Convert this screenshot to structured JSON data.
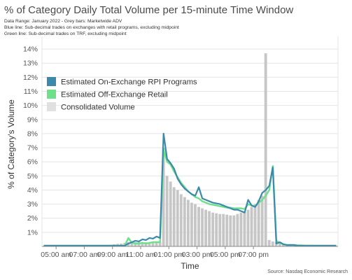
{
  "chart_data": {
    "type": "bar+line",
    "title": "% of Category Daily Total Volume per 15-minute Time Window",
    "subtitle_lines": [
      "Data Range: January 2022 - Grey bars: Marketwide ADV",
      "Blue line: Sub-decimal trades on exchanges with retail programs, excluding midpoint",
      "Green line: Sub-decimal trades on TRF, excluding midpoint"
    ],
    "xlabel": "Time",
    "ylabel": "% of Category's Volume",
    "source": "Source: Nasdaq Economic Research",
    "ylim": [
      0,
      14.5
    ],
    "y_ticks": [
      1,
      2,
      3,
      4,
      5,
      6,
      7,
      8,
      9,
      10,
      11,
      12,
      13,
      14
    ],
    "y_tick_labels": [
      "1%",
      "2%",
      "3%",
      "4%",
      "5%",
      "6%",
      "7%",
      "8%",
      "9%",
      "10%",
      "11%",
      "12%",
      "13%",
      "14%"
    ],
    "x_tick_labels": [
      {
        "hour": 5,
        "label": "05:00 am"
      },
      {
        "hour": 7,
        "label": "07:00 am"
      },
      {
        "hour": 9,
        "label": "09:00 am"
      },
      {
        "hour": 11,
        "label": "11:00 am"
      },
      {
        "hour": 13,
        "label": "01:00 pm"
      },
      {
        "hour": 15,
        "label": "03:00 pm"
      },
      {
        "hour": 17,
        "label": "05:00 pm"
      },
      {
        "hour": 19,
        "label": "07:00 pm"
      }
    ],
    "x_start_hour": 4,
    "interval_minutes": 15,
    "legend_position": "upper-left",
    "series": [
      {
        "name": "Consolidated Volume",
        "kind": "bar",
        "color": "#c6c6c6",
        "values": [
          0.02,
          0.02,
          0.02,
          0.02,
          0.02,
          0.02,
          0.02,
          0.02,
          0.02,
          0.03,
          0.03,
          0.03,
          0.03,
          0.04,
          0.04,
          0.05,
          0.06,
          0.07,
          0.09,
          0.12,
          0.15,
          0.18,
          0.2,
          0.25,
          0.3,
          0.3,
          0.3,
          0.3,
          0.3,
          0.3,
          0.3,
          0.3,
          0.3,
          0.3,
          7.0,
          5.0,
          4.6,
          4.2,
          4.0,
          3.7,
          3.5,
          3.3,
          3.1,
          3.0,
          2.8,
          2.7,
          2.6,
          2.5,
          2.4,
          2.35,
          2.3,
          2.3,
          2.25,
          2.2,
          2.2,
          2.3,
          2.4,
          2.5,
          2.6,
          2.8,
          3.0,
          3.3,
          3.6,
          13.7,
          0.45,
          0.35,
          0.3,
          0.25,
          0.2,
          0.15,
          0.12,
          0.1,
          0.09,
          0.08,
          0.07,
          0.06,
          0.05,
          0.05,
          0.04,
          0.04,
          0.03,
          0.03,
          0.03,
          0.03
        ]
      },
      {
        "name": "Estimated On-Exchange RPI Programs",
        "kind": "line",
        "color": "#3b8aac",
        "values": [
          0.05,
          0.05,
          0.05,
          0.05,
          0.05,
          0.05,
          0.05,
          0.05,
          0.05,
          0.05,
          0.05,
          0.05,
          0.05,
          0.05,
          0.05,
          0.05,
          0.05,
          0.05,
          0.05,
          0.05,
          0.05,
          0.05,
          0.05,
          0.05,
          0.2,
          0.3,
          0.4,
          0.35,
          0.5,
          0.45,
          0.6,
          0.55,
          0.7,
          0.6,
          8.0,
          6.2,
          5.9,
          5.5,
          4.8,
          4.4,
          4.1,
          3.9,
          3.7,
          3.6,
          4.2,
          3.4,
          3.3,
          3.2,
          3.1,
          3.05,
          3.0,
          2.9,
          2.8,
          2.7,
          2.6,
          2.6,
          2.5,
          2.4,
          3.3,
          2.9,
          2.8,
          3.2,
          3.8,
          4.0,
          4.3,
          5.6,
          0.2,
          0.3,
          0.15,
          0.1,
          0.1,
          0.1,
          0.05,
          0.05,
          0.05,
          0.05,
          0.05,
          0.05,
          0.05,
          0.05,
          0.05,
          0.05,
          0.05,
          0.05
        ]
      },
      {
        "name": "Estimated Off-Exchange Retail",
        "kind": "line",
        "color": "#6ee08a",
        "values": [
          0.05,
          0.05,
          0.05,
          0.05,
          0.05,
          0.05,
          0.05,
          0.05,
          0.05,
          0.05,
          0.05,
          0.05,
          0.05,
          0.05,
          0.05,
          0.05,
          0.05,
          0.05,
          0.05,
          0.05,
          0.05,
          0.05,
          0.05,
          0.05,
          0.6,
          0.25,
          0.2,
          0.2,
          0.25,
          0.2,
          0.25,
          0.3,
          0.3,
          0.3,
          6.9,
          6.0,
          5.8,
          5.3,
          4.9,
          4.5,
          4.2,
          3.9,
          3.7,
          3.5,
          3.4,
          3.2,
          3.1,
          3.0,
          2.95,
          2.9,
          2.85,
          2.8,
          2.75,
          2.75,
          2.7,
          2.7,
          2.7,
          2.65,
          3.0,
          2.9,
          2.85,
          3.1,
          3.3,
          3.6,
          4.0,
          5.7,
          0.4,
          0.25,
          0.15,
          0.1,
          0.1,
          0.1,
          0.08,
          0.08,
          0.06,
          0.06,
          0.05,
          0.05,
          0.05,
          0.05,
          0.05,
          0.05,
          0.05,
          0.05
        ]
      }
    ]
  }
}
